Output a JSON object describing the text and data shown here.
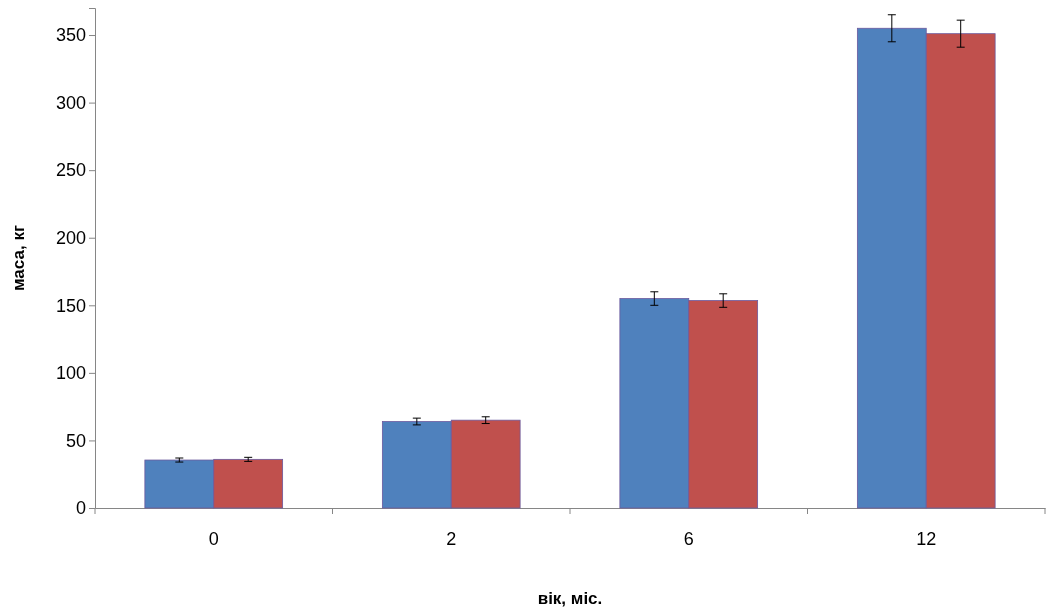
{
  "chart_data": {
    "type": "bar",
    "xlabel": "вік, міс.",
    "ylabel": "маса, кг",
    "categories": [
      "0",
      "2",
      "6",
      "12"
    ],
    "series": [
      {
        "color": "#4f81bd",
        "values": [
          35.5,
          64,
          155,
          355
        ],
        "errors": [
          1.5,
          2.5,
          5,
          10
        ]
      },
      {
        "color": "#c0504d",
        "values": [
          36,
          65,
          153.5,
          351
        ],
        "errors": [
          1.5,
          2.5,
          5,
          10
        ]
      }
    ],
    "ylim": [
      0,
      370
    ],
    "yticks": [
      0,
      50,
      100,
      150,
      200,
      250,
      300,
      350
    ],
    "grid": false
  }
}
